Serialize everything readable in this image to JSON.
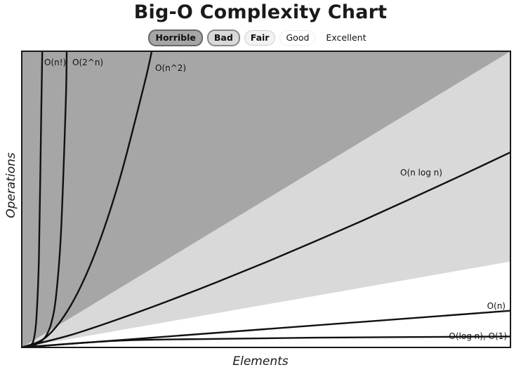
{
  "chart_data": {
    "type": "line",
    "title": "Big-O Complexity Chart",
    "xlabel": "Elements",
    "ylabel": "Operations",
    "legend": {
      "placement": "top-center",
      "entries": [
        {
          "label": "Horrible",
          "color": "#a6a6a6"
        },
        {
          "label": "Bad",
          "color": "#d9d9d9"
        },
        {
          "label": "Fair",
          "color": "#f2f2f2"
        },
        {
          "label": "Good",
          "color": "#ffffff"
        },
        {
          "label": "Excellent",
          "color": "#ffffff"
        }
      ]
    },
    "series": [
      {
        "name": "O(n!)",
        "x": [
          0,
          0.5,
          1.0,
          1.5,
          2.0,
          2.5,
          3.0,
          3.5,
          4.0,
          4.2
        ],
        "y": [
          0,
          0.5,
          1.5,
          4,
          10,
          30,
          100,
          300,
          800,
          1000
        ]
      },
      {
        "name": "O(2^n)",
        "x": [
          0,
          1,
          2,
          3,
          4,
          5,
          6,
          7,
          8,
          9,
          9.2
        ],
        "y": [
          0,
          2,
          5,
          11,
          21,
          40,
          80,
          170,
          380,
          820,
          1000
        ]
      },
      {
        "name": "O(n^2)",
        "x": [
          0,
          5,
          10,
          15,
          20,
          25,
          26.6
        ],
        "y": [
          0,
          35,
          141,
          318,
          566,
          884,
          1000
        ]
      },
      {
        "name": "O(n log n)",
        "x": [
          0,
          10,
          20,
          30,
          40,
          50,
          60,
          70,
          80,
          90,
          100
        ],
        "y": [
          0,
          42,
          97,
          157,
          221,
          288,
          358,
          430,
          505,
          581,
          659
        ]
      },
      {
        "name": "O(n)",
        "x": [
          0,
          100
        ],
        "y": [
          0,
          124
        ]
      },
      {
        "name": "O(log n), O(1)",
        "x": [
          0,
          20,
          40,
          60,
          80,
          100
        ],
        "y": [
          0,
          23,
          29,
          33,
          35,
          37
        ]
      }
    ],
    "regions": [
      {
        "name": "Horrible",
        "color": "#a6a6a6"
      },
      {
        "name": "Bad",
        "color": "#d9d9d9",
        "upper_slope": 10
      },
      {
        "name": "Fair",
        "color": "#ffffff",
        "upper_slope": 2.9
      }
    ],
    "xlim": [
      0,
      100
    ],
    "ylim": [
      0,
      1000
    ],
    "grid": false
  }
}
